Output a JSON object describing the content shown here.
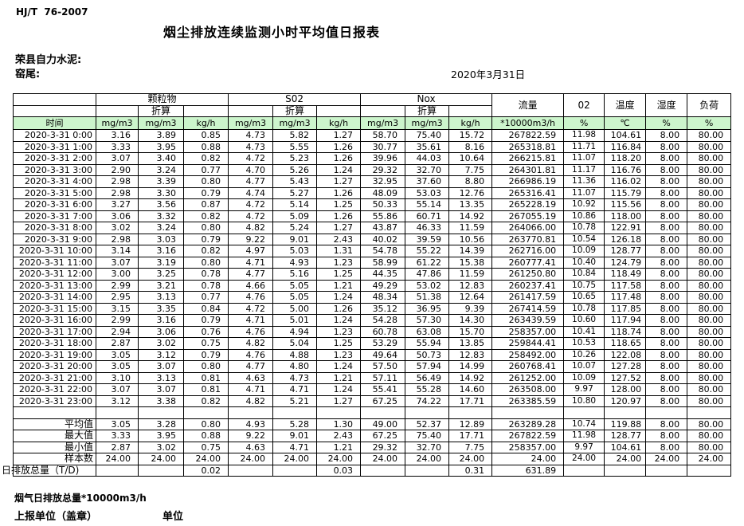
{
  "page": {
    "standard_code": "HJ/T  76-2007",
    "title": "烟尘排放连续监测小时平均值日报表",
    "company": "荣县自力水泥:",
    "location": "窑尾:",
    "date": "2020年3月31日",
    "footer_note": "烟气日排放总量*10000m3/h",
    "report_unit_label": "上报单位（盖章）",
    "unit_label": "单位"
  },
  "colors": {
    "header_green": "#ccf5cc",
    "grid": "#000000"
  },
  "table": {
    "time_header": "时间",
    "converted_label": "折算",
    "groups": [
      {
        "label": "颗粒物"
      },
      {
        "label": "S02"
      },
      {
        "label": "Nox"
      }
    ],
    "single_columns": [
      "流量",
      "02",
      "温度",
      "湿度",
      "负荷"
    ],
    "units": [
      "mg/m3",
      "mg/m3",
      "kg/h",
      "mg/m3",
      "mg/m3",
      "kg/h",
      "mg/m3",
      "mg/m3",
      "kg/h",
      "*10000m3/h",
      "%",
      "℃",
      "%",
      "%"
    ],
    "rows": [
      {
        "time": "2020-3-31 0:00",
        "values": [
          "3.16",
          "3.89",
          "0.85",
          "4.73",
          "5.82",
          "1.27",
          "58.70",
          "75.40",
          "15.72",
          "267822.59",
          "11.98",
          "104.61",
          "8.00",
          "80.00"
        ]
      },
      {
        "time": "2020-3-31 1:00",
        "values": [
          "3.33",
          "3.95",
          "0.88",
          "4.73",
          "5.55",
          "1.26",
          "30.77",
          "35.61",
          "8.16",
          "265318.81",
          "11.71",
          "116.84",
          "8.00",
          "80.00"
        ]
      },
      {
        "time": "2020-3-31 2:00",
        "values": [
          "3.07",
          "3.40",
          "0.82",
          "4.72",
          "5.23",
          "1.26",
          "39.96",
          "44.03",
          "10.64",
          "266215.81",
          "11.07",
          "118.20",
          "8.00",
          "80.00"
        ]
      },
      {
        "time": "2020-3-31 3:00",
        "values": [
          "2.90",
          "3.24",
          "0.77",
          "4.70",
          "5.26",
          "1.24",
          "29.32",
          "32.70",
          "7.75",
          "264301.81",
          "11.17",
          "116.76",
          "8.00",
          "80.00"
        ]
      },
      {
        "time": "2020-3-31 4:00",
        "values": [
          "2.98",
          "3.39",
          "0.80",
          "4.77",
          "5.43",
          "1.27",
          "32.95",
          "37.60",
          "8.80",
          "266986.19",
          "11.36",
          "116.02",
          "8.00",
          "80.00"
        ]
      },
      {
        "time": "2020-3-31 5:00",
        "values": [
          "2.98",
          "3.30",
          "0.79",
          "4.74",
          "5.27",
          "1.26",
          "48.09",
          "53.03",
          "12.76",
          "265316.41",
          "11.07",
          "115.79",
          "8.00",
          "80.00"
        ]
      },
      {
        "time": "2020-3-31 6:00",
        "values": [
          "3.27",
          "3.56",
          "0.87",
          "4.72",
          "5.14",
          "1.25",
          "50.33",
          "55.14",
          "13.35",
          "265228.19",
          "10.92",
          "115.56",
          "8.00",
          "80.00"
        ]
      },
      {
        "time": "2020-3-31 7:00",
        "values": [
          "3.06",
          "3.32",
          "0.82",
          "4.72",
          "5.09",
          "1.26",
          "55.86",
          "60.71",
          "14.92",
          "267055.19",
          "10.86",
          "118.00",
          "8.00",
          "80.00"
        ]
      },
      {
        "time": "2020-3-31 8:00",
        "values": [
          "3.02",
          "3.24",
          "0.80",
          "4.82",
          "5.24",
          "1.27",
          "43.87",
          "46.33",
          "11.59",
          "264066.00",
          "10.78",
          "122.91",
          "8.00",
          "80.00"
        ]
      },
      {
        "time": "2020-3-31 9:00",
        "values": [
          "2.98",
          "3.03",
          "0.79",
          "9.22",
          "9.01",
          "2.43",
          "40.02",
          "39.59",
          "10.56",
          "263770.81",
          "10.54",
          "126.18",
          "8.00",
          "80.00"
        ]
      },
      {
        "time": "2020-3-31 10:00",
        "values": [
          "3.14",
          "3.16",
          "0.82",
          "4.97",
          "5.03",
          "1.31",
          "54.78",
          "55.22",
          "14.39",
          "262716.00",
          "10.09",
          "128.77",
          "8.00",
          "80.00"
        ]
      },
      {
        "time": "2020-3-31 11:00",
        "values": [
          "3.07",
          "3.19",
          "0.80",
          "4.71",
          "4.93",
          "1.23",
          "58.99",
          "61.22",
          "15.38",
          "260777.41",
          "10.40",
          "124.79",
          "8.00",
          "80.00"
        ]
      },
      {
        "time": "2020-3-31 12:00",
        "values": [
          "3.00",
          "3.25",
          "0.78",
          "4.77",
          "5.16",
          "1.25",
          "44.35",
          "47.86",
          "11.59",
          "261250.80",
          "10.84",
          "118.49",
          "8.00",
          "80.00"
        ]
      },
      {
        "time": "2020-3-31 13:00",
        "values": [
          "2.99",
          "3.21",
          "0.78",
          "4.66",
          "5.05",
          "1.21",
          "49.29",
          "53.02",
          "12.83",
          "260237.41",
          "10.75",
          "117.58",
          "8.00",
          "80.00"
        ]
      },
      {
        "time": "2020-3-31 14:00",
        "values": [
          "2.95",
          "3.13",
          "0.77",
          "4.76",
          "5.05",
          "1.24",
          "48.34",
          "51.38",
          "12.64",
          "261417.59",
          "10.65",
          "117.48",
          "8.00",
          "80.00"
        ]
      },
      {
        "time": "2020-3-31 15:00",
        "values": [
          "3.15",
          "3.35",
          "0.84",
          "4.72",
          "5.00",
          "1.26",
          "35.12",
          "36.95",
          "9.39",
          "267414.59",
          "10.78",
          "117.85",
          "8.00",
          "80.00"
        ]
      },
      {
        "time": "2020-3-31 16:00",
        "values": [
          "2.99",
          "3.16",
          "0.79",
          "4.71",
          "5.01",
          "1.24",
          "54.28",
          "57.30",
          "14.30",
          "263439.59",
          "10.60",
          "117.94",
          "8.00",
          "80.00"
        ]
      },
      {
        "time": "2020-3-31 17:00",
        "values": [
          "2.94",
          "3.06",
          "0.76",
          "4.76",
          "4.94",
          "1.23",
          "60.78",
          "63.08",
          "15.70",
          "258357.00",
          "10.41",
          "118.74",
          "8.00",
          "80.00"
        ]
      },
      {
        "time": "2020-3-31 18:00",
        "values": [
          "2.87",
          "3.02",
          "0.75",
          "4.82",
          "5.04",
          "1.25",
          "53.29",
          "55.94",
          "13.85",
          "259844.41",
          "10.53",
          "118.65",
          "8.00",
          "80.00"
        ]
      },
      {
        "time": "2020-3-31 19:00",
        "values": [
          "3.05",
          "3.12",
          "0.79",
          "4.76",
          "4.88",
          "1.23",
          "49.64",
          "50.73",
          "12.83",
          "258492.00",
          "10.26",
          "122.08",
          "8.00",
          "80.00"
        ]
      },
      {
        "time": "2020-3-31 20:00",
        "values": [
          "3.05",
          "3.07",
          "0.80",
          "4.77",
          "4.80",
          "1.24",
          "57.50",
          "57.94",
          "14.99",
          "260768.41",
          "10.07",
          "127.28",
          "8.00",
          "80.00"
        ]
      },
      {
        "time": "2020-3-31 21:00",
        "values": [
          "3.10",
          "3.13",
          "0.81",
          "4.63",
          "4.73",
          "1.21",
          "57.11",
          "56.49",
          "14.92",
          "261252.00",
          "10.09",
          "127.52",
          "8.00",
          "80.00"
        ]
      },
      {
        "time": "2020-3-31 22:00",
        "values": [
          "3.07",
          "3.07",
          "0.81",
          "4.71",
          "4.71",
          "1.24",
          "55.41",
          "55.28",
          "14.60",
          "263508.00",
          "9.97",
          "128.00",
          "8.00",
          "80.00"
        ]
      },
      {
        "time": "2020-3-31 23:00",
        "values": [
          "3.12",
          "3.38",
          "0.82",
          "4.82",
          "5.21",
          "1.27",
          "67.25",
          "74.22",
          "17.71",
          "263385.59",
          "10.80",
          "120.97",
          "8.00",
          "80.00"
        ]
      }
    ],
    "summary": [
      {
        "label": "平均值",
        "values": [
          "3.05",
          "3.28",
          "0.80",
          "4.93",
          "5.28",
          "1.30",
          "49.00",
          "52.37",
          "12.89",
          "263289.28",
          "10.74",
          "119.88",
          "8.00",
          "80.00"
        ]
      },
      {
        "label": "最大值",
        "values": [
          "3.33",
          "3.95",
          "0.88",
          "9.22",
          "9.01",
          "2.43",
          "67.25",
          "75.40",
          "17.71",
          "267822.59",
          "11.98",
          "128.77",
          "8.00",
          "80.00"
        ]
      },
      {
        "label": "最小值",
        "values": [
          "2.87",
          "3.02",
          "0.75",
          "4.63",
          "4.71",
          "1.21",
          "29.32",
          "32.70",
          "7.75",
          "258357.00",
          "9.97",
          "104.61",
          "8.00",
          "80.00"
        ]
      },
      {
        "label": "样本数",
        "values": [
          "24.00",
          "24.00",
          "24.00",
          "24.00",
          "24.00",
          "24.00",
          "24.00",
          "24.00",
          "24.00",
          "24.00",
          "24.00",
          "24.00",
          "24.00",
          "24.00"
        ]
      },
      {
        "label": "日排放总量（T/D)",
        "values": [
          "",
          "",
          "0.02",
          "",
          "",
          "0.03",
          "",
          "",
          "0.31",
          "631.89",
          "",
          "",
          "",
          ""
        ]
      }
    ]
  }
}
